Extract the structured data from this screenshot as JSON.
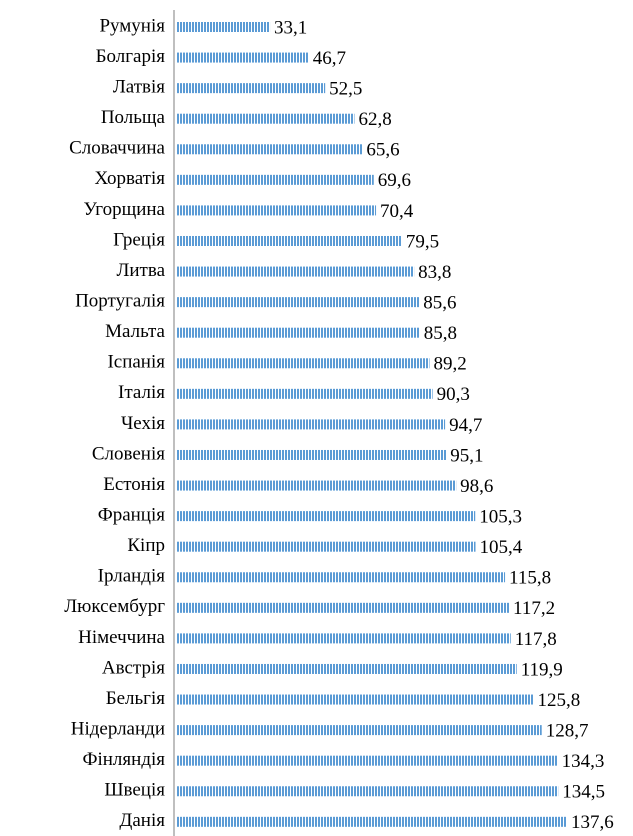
{
  "chart_data": {
    "type": "bar",
    "orientation": "horizontal",
    "color": "#5b9bd5",
    "categories": [
      "Румунія",
      "Болгарія",
      "Латвія",
      "Польща",
      "Словаччина",
      "Хорватія",
      "Угорщина",
      "Греція",
      "Литва",
      "Португалія",
      "Мальта",
      "Іспанія",
      "Італія",
      "Чехія",
      "Словенія",
      "Естонія",
      "Франція",
      "Кіпр",
      "Ірландія",
      "Люксембург",
      "Німеччина",
      "Австрія",
      "Бельгія",
      "Нідерланди",
      "Фінляндія",
      "Швеція",
      "Данія"
    ],
    "values": [
      33.1,
      46.7,
      52.5,
      62.8,
      65.6,
      69.6,
      70.4,
      79.5,
      83.8,
      85.6,
      85.8,
      89.2,
      90.3,
      94.7,
      95.1,
      98.6,
      105.3,
      105.4,
      115.8,
      117.2,
      117.8,
      119.9,
      125.8,
      128.7,
      134.3,
      134.5,
      137.6
    ],
    "value_labels": [
      "33,1",
      "46,7",
      "52,5",
      "62,8",
      "65,6",
      "69,6",
      "70,4",
      "79,5",
      "83,8",
      "85,6",
      "85,8",
      "89,2",
      "90,3",
      "94,7",
      "95,1",
      "98,6",
      "105,3",
      "105,4",
      "115,8",
      "117,2",
      "117,8",
      "119,9",
      "125,8",
      "128,7",
      "134,3",
      "134,5",
      "137,6"
    ]
  }
}
